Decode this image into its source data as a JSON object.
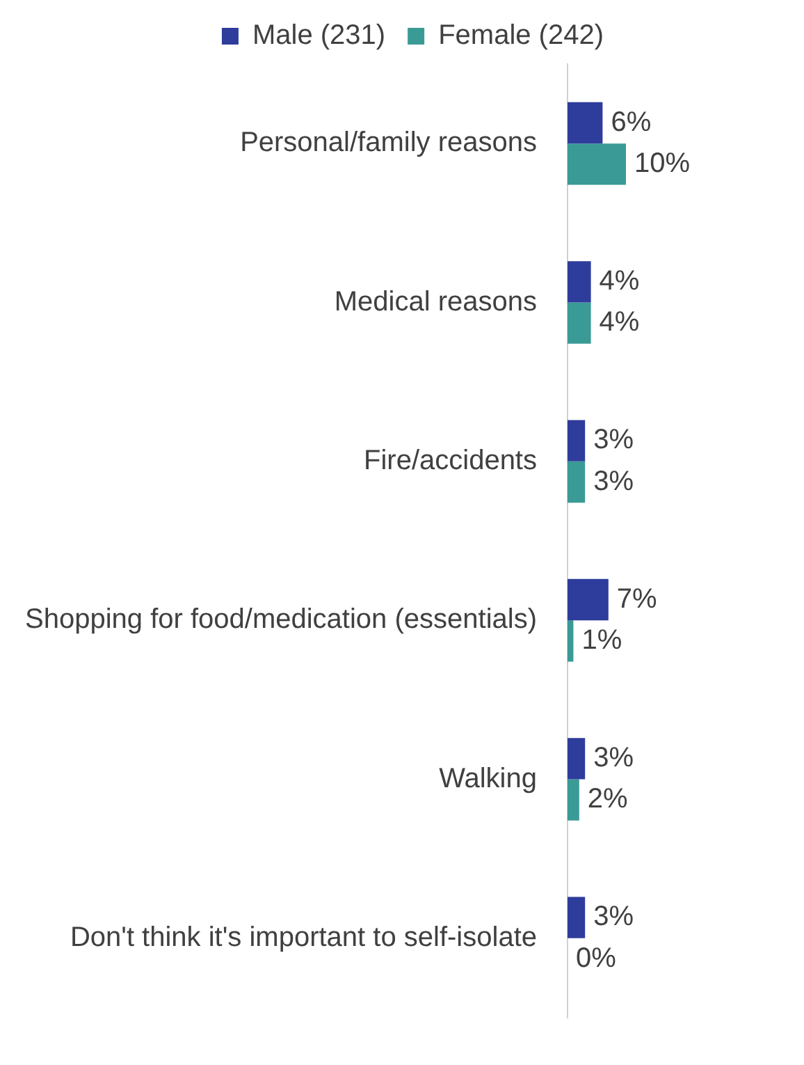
{
  "chart_data": {
    "type": "bar",
    "orientation": "horizontal",
    "categories": [
      "Personal/family reasons",
      "Medical reasons",
      "Fire/accidents",
      "Shopping for food/medication (essentials)",
      "Walking",
      "Don't think it's important to self-isolate"
    ],
    "series": [
      {
        "name": "Male (231)",
        "color": "#2e3c9c",
        "values": [
          6,
          4,
          3,
          7,
          3,
          3
        ],
        "value_labels": [
          "6%",
          "4%",
          "3%",
          "7%",
          "3%",
          "3%"
        ]
      },
      {
        "name": "Female (242)",
        "color": "#3a9a96",
        "values": [
          10,
          4,
          3,
          1,
          2,
          0
        ],
        "value_labels": [
          "10%",
          "4%",
          "3%",
          "1%",
          "2%",
          "0%"
        ]
      }
    ],
    "legend": "top"
  }
}
